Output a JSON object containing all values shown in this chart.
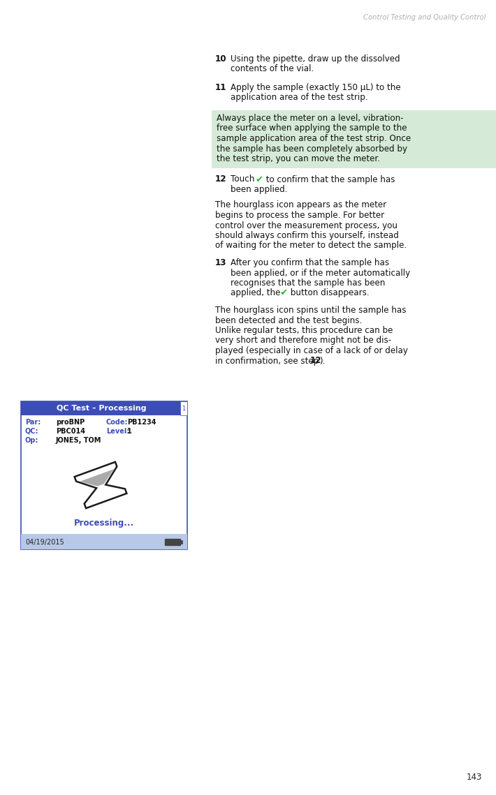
{
  "header_text": "Control Testing and Quality Control",
  "header_color": "#b0b0b0",
  "page_number": "143",
  "bg_color": "#ffffff",
  "highlight_bg": "#d6ead8",
  "screen": {
    "title": "QC Test – Processing",
    "title_bg": "#3d4db7",
    "title_color": "#ffffff",
    "par_label": "Par:",
    "par_value": "proBNP",
    "code_label": "Code:",
    "code_value": "PB1234",
    "qc_label": "QC:",
    "qc_value": "PBC014",
    "level_label": "Level:",
    "level_value": "1",
    "op_label": "Op:",
    "op_value": "JONES, TOM",
    "processing_text": "Processing...",
    "date_text": "04/19/2015",
    "screen_bg": "#ffffff",
    "screen_border": "#3d4db7",
    "label_color": "#3d4db7",
    "processing_color": "#3d4db7",
    "footer_bg": "#b8c8e8",
    "footer_color": "#222222"
  }
}
